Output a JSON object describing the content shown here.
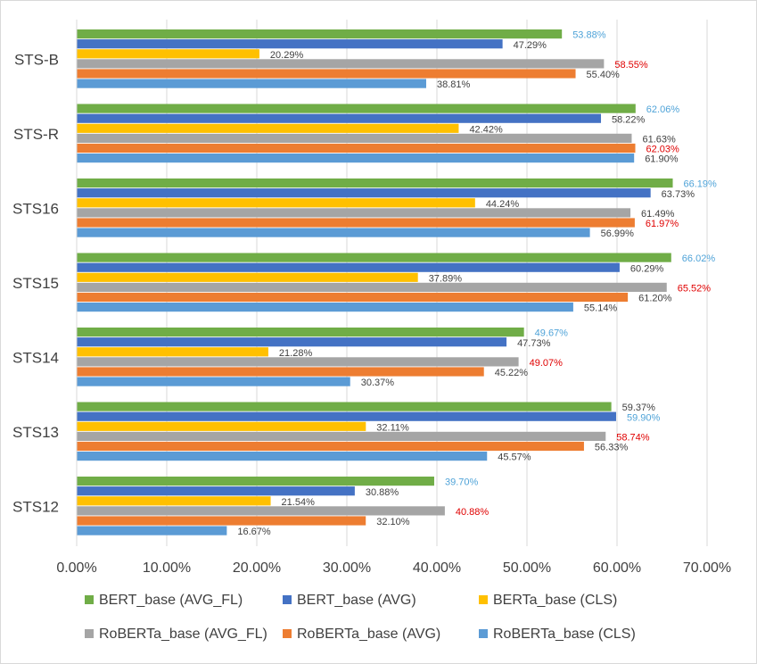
{
  "chart_data": {
    "type": "bar",
    "orientation": "horizontal",
    "title": "",
    "xlabel": "",
    "ylabel": "",
    "xlim": [
      0,
      70
    ],
    "grid": true,
    "legend_position": "bottom",
    "tick_labels": [
      "0.00%",
      "10.00%",
      "20.00%",
      "30.00%",
      "40.00%",
      "50.00%",
      "60.00%",
      "70.00%"
    ],
    "categories": [
      "STS-B",
      "STS-R",
      "STS16",
      "STS15",
      "STS14",
      "STS13",
      "STS12"
    ],
    "series": [
      {
        "name": "BERT_base (AVG_FL)",
        "color": "#70ad47",
        "values": [
          53.88,
          62.06,
          66.19,
          66.02,
          49.67,
          59.37,
          39.7
        ],
        "labels": [
          "53.88%",
          "62.06%",
          "66.19%",
          "66.02%",
          "49.67%",
          "59.37%",
          "39.70%"
        ],
        "label_colors": [
          "#4fa3d8",
          "#4fa3d8",
          "#4fa3d8",
          "#4fa3d8",
          "#4fa3d8",
          "#404040",
          "#4fa3d8"
        ]
      },
      {
        "name": "BERT_base (AVG)",
        "color": "#4472c4",
        "values": [
          47.29,
          58.22,
          63.73,
          60.29,
          47.73,
          59.9,
          30.88
        ],
        "labels": [
          "47.29%",
          "58.22%",
          "63.73%",
          "60.29%",
          "47.73%",
          "59.90%",
          "30.88%"
        ],
        "label_colors": [
          "#404040",
          "#404040",
          "#404040",
          "#404040",
          "#404040",
          "#4fa3d8",
          "#404040"
        ]
      },
      {
        "name": "BERTa_base (CLS)",
        "color": "#ffc000",
        "values": [
          20.29,
          42.42,
          44.24,
          37.89,
          21.28,
          32.11,
          21.54
        ],
        "labels": [
          "20.29%",
          "42.42%",
          "44.24%",
          "37.89%",
          "21.28%",
          "32.11%",
          "21.54%"
        ],
        "label_colors": [
          "#404040",
          "#404040",
          "#404040",
          "#404040",
          "#404040",
          "#404040",
          "#404040"
        ]
      },
      {
        "name": "RoBERTa_base (AVG_FL)",
        "color": "#a5a5a5",
        "values": [
          58.55,
          61.63,
          61.49,
          65.52,
          49.07,
          58.74,
          40.88
        ],
        "labels": [
          "58.55%",
          "61.63%",
          "61.49%",
          "65.52%",
          "49.07%",
          "58.74%",
          "40.88%"
        ],
        "label_colors": [
          "#e00000",
          "#404040",
          "#404040",
          "#e00000",
          "#e00000",
          "#e00000",
          "#e00000"
        ]
      },
      {
        "name": "RoBERTa_base (AVG)",
        "color": "#ed7d31",
        "values": [
          55.4,
          62.03,
          61.97,
          61.2,
          45.22,
          56.33,
          32.1
        ],
        "labels": [
          "55.40%",
          "62.03%",
          "61.97%",
          "61.20%",
          "45.22%",
          "56.33%",
          "32.10%"
        ],
        "label_colors": [
          "#404040",
          "#e00000",
          "#e00000",
          "#404040",
          "#404040",
          "#404040",
          "#404040"
        ]
      },
      {
        "name": "RoBERTa_base (CLS)",
        "color": "#5b9bd5",
        "values": [
          38.81,
          61.9,
          56.99,
          55.14,
          30.37,
          45.57,
          16.67
        ],
        "labels": [
          "38.81%",
          "61.90%",
          "56.99%",
          "55.14%",
          "30.37%",
          "45.57%",
          "16.67%"
        ],
        "label_colors": [
          "#404040",
          "#404040",
          "#404040",
          "#404040",
          "#404040",
          "#404040",
          "#404040"
        ]
      }
    ]
  }
}
